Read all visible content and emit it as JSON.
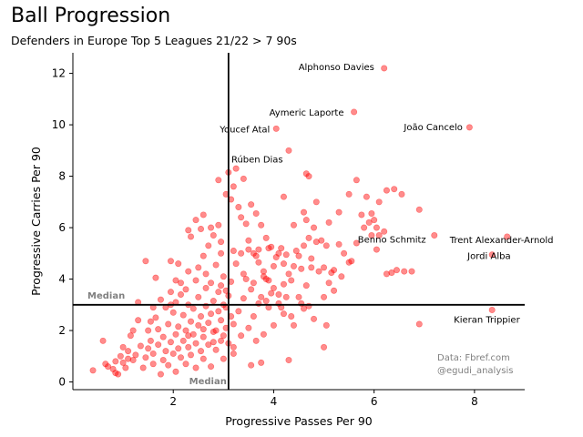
{
  "title": "Ball Progression",
  "subtitle": "Defenders in Europe Top 5 Leagues 21/22 > 7 90s",
  "credit": {
    "line1": "Data: Fbref.com",
    "line2": "@egudi_analysis"
  },
  "chart_data": {
    "type": "scatter",
    "xlabel": "Progressive Passes Per 90",
    "ylabel": "Progressive Carries Per 90",
    "xlim": [
      0.0,
      9.0
    ],
    "ylim": [
      -0.3,
      12.8
    ],
    "xticks": [
      2,
      4,
      6,
      8
    ],
    "yticks": [
      0,
      2,
      4,
      6,
      8,
      10,
      12
    ],
    "marker_color": "#ff0000",
    "marker_alpha": 0.45,
    "median": {
      "x": 3.1,
      "y": 3.0,
      "label": "Median"
    },
    "grid": false,
    "labeled_points": [
      {
        "name": "Alphonso Davies",
        "x": 6.2,
        "y": 12.2
      },
      {
        "name": "Aymeric Laporte",
        "x": 5.6,
        "y": 10.5
      },
      {
        "name": "João Cancelo",
        "x": 7.9,
        "y": 9.9
      },
      {
        "name": "Youcef Atal",
        "x": 4.05,
        "y": 9.85
      },
      {
        "name": "Rúben Dias",
        "x": 4.3,
        "y": 9.0
      },
      {
        "name": "Benno Schmitz",
        "x": 7.2,
        "y": 5.7
      },
      {
        "name": "Trent Alexander-Arnold",
        "x": 8.65,
        "y": 5.65
      },
      {
        "name": "Jordi Alba",
        "x": 8.35,
        "y": 4.95
      },
      {
        "name": "Kieran Trippier",
        "x": 8.35,
        "y": 2.8
      }
    ],
    "points": [
      [
        0.4,
        0.45
      ],
      [
        0.65,
        0.7
      ],
      [
        0.7,
        0.6
      ],
      [
        0.8,
        0.5
      ],
      [
        0.85,
        0.35
      ],
      [
        0.9,
        0.3
      ],
      [
        0.6,
        1.6
      ],
      [
        0.85,
        0.8
      ],
      [
        0.95,
        1.0
      ],
      [
        1.0,
        0.75
      ],
      [
        1.05,
        0.55
      ],
      [
        1.1,
        0.9
      ],
      [
        1.0,
        1.35
      ],
      [
        1.1,
        1.2
      ],
      [
        1.15,
        1.8
      ],
      [
        1.2,
        0.85
      ],
      [
        1.25,
        1.05
      ],
      [
        1.3,
        2.4
      ],
      [
        1.35,
        1.4
      ],
      [
        1.4,
        0.55
      ],
      [
        1.45,
        0.95
      ],
      [
        1.5,
        1.3
      ],
      [
        1.5,
        2.0
      ],
      [
        1.55,
        1.6
      ],
      [
        1.6,
        0.7
      ],
      [
        1.6,
        1.1
      ],
      [
        1.65,
        2.5
      ],
      [
        1.7,
        2.05
      ],
      [
        1.7,
        1.45
      ],
      [
        1.75,
        0.3
      ],
      [
        1.8,
        0.85
      ],
      [
        1.8,
        1.75
      ],
      [
        1.85,
        1.2
      ],
      [
        1.9,
        2.25
      ],
      [
        1.9,
        0.65
      ],
      [
        1.95,
        1.55
      ],
      [
        1.95,
        3.0
      ],
      [
        2.0,
        1.1
      ],
      [
        2.0,
        2.7
      ],
      [
        2.05,
        1.85
      ],
      [
        2.05,
        0.4
      ],
      [
        2.1,
        1.3
      ],
      [
        2.1,
        2.15
      ],
      [
        2.15,
        0.95
      ],
      [
        2.15,
        3.4
      ],
      [
        2.2,
        1.6
      ],
      [
        2.2,
        2.6
      ],
      [
        2.25,
        0.7
      ],
      [
        2.25,
        2.0
      ],
      [
        2.3,
        1.35
      ],
      [
        2.3,
        3.0
      ],
      [
        2.35,
        2.35
      ],
      [
        2.35,
        1.05
      ],
      [
        2.4,
        1.85
      ],
      [
        2.4,
        2.85
      ],
      [
        2.45,
        0.55
      ],
      [
        2.45,
        1.5
      ],
      [
        2.5,
        2.2
      ],
      [
        2.5,
        3.3
      ],
      [
        2.55,
        1.2
      ],
      [
        2.55,
        2.55
      ],
      [
        2.6,
        0.9
      ],
      [
        2.6,
        1.75
      ],
      [
        2.65,
        2.95
      ],
      [
        2.65,
        3.65
      ],
      [
        2.7,
        1.45
      ],
      [
        2.7,
        2.3
      ],
      [
        2.75,
        0.6
      ],
      [
        2.75,
        2.65
      ],
      [
        2.8,
        1.95
      ],
      [
        2.8,
        3.15
      ],
      [
        2.85,
        1.25
      ],
      [
        2.85,
        2.0
      ],
      [
        2.9,
        2.75
      ],
      [
        2.9,
        3.5
      ],
      [
        2.95,
        1.6
      ],
      [
        2.95,
        2.4
      ],
      [
        3.0,
        0.9
      ],
      [
        3.0,
        3.0
      ],
      [
        3.05,
        2.1
      ],
      [
        3.05,
        2.9
      ],
      [
        3.1,
        1.5
      ],
      [
        3.1,
        3.35
      ],
      [
        3.15,
        2.55
      ],
      [
        3.2,
        1.1
      ],
      [
        3.2,
        2.25
      ],
      [
        3.3,
        2.75
      ],
      [
        3.35,
        1.8
      ],
      [
        3.4,
        3.25
      ],
      [
        3.5,
        2.1
      ],
      [
        3.55,
        0.65
      ],
      [
        3.6,
        2.55
      ],
      [
        3.65,
        1.6
      ],
      [
        3.7,
        3.05
      ],
      [
        3.8,
        1.85
      ],
      [
        3.9,
        2.9
      ],
      [
        4.0,
        2.2
      ],
      [
        4.1,
        3.05
      ],
      [
        4.2,
        2.65
      ],
      [
        4.4,
        2.2
      ],
      [
        4.6,
        2.85
      ],
      [
        4.8,
        2.45
      ],
      [
        5.05,
        2.2
      ],
      [
        5.0,
        1.35
      ],
      [
        4.3,
        0.85
      ],
      [
        3.75,
        0.75
      ],
      [
        6.9,
        2.25
      ],
      [
        1.95,
        4.7
      ],
      [
        2.3,
        4.3
      ],
      [
        2.5,
        4.45
      ],
      [
        2.6,
        4.9
      ],
      [
        2.7,
        5.3
      ],
      [
        2.8,
        5.7
      ],
      [
        2.9,
        6.1
      ],
      [
        2.35,
        5.65
      ],
      [
        2.45,
        6.3
      ],
      [
        2.55,
        5.95
      ],
      [
        2.6,
        6.5
      ],
      [
        2.75,
        6.0
      ],
      [
        2.95,
        5.45
      ],
      [
        3.05,
        7.3
      ],
      [
        3.15,
        7.1
      ],
      [
        3.2,
        7.6
      ],
      [
        3.3,
        6.8
      ],
      [
        3.35,
        6.4
      ],
      [
        3.45,
        6.15
      ],
      [
        3.55,
        6.9
      ],
      [
        3.65,
        6.55
      ],
      [
        3.75,
        6.1
      ],
      [
        3.85,
        5.6
      ],
      [
        3.95,
        5.25
      ],
      [
        4.05,
        4.85
      ],
      [
        3.5,
        5.5
      ],
      [
        3.6,
        5.0
      ],
      [
        3.7,
        4.65
      ],
      [
        3.8,
        4.3
      ],
      [
        3.9,
        3.95
      ],
      [
        4.0,
        3.65
      ],
      [
        4.1,
        3.4
      ],
      [
        4.2,
        3.8
      ],
      [
        4.3,
        4.2
      ],
      [
        4.4,
        4.5
      ],
      [
        4.5,
        4.9
      ],
      [
        4.6,
        5.3
      ],
      [
        4.7,
        5.6
      ],
      [
        4.8,
        6.0
      ],
      [
        4.2,
        7.2
      ],
      [
        4.4,
        6.1
      ],
      [
        4.6,
        6.6
      ],
      [
        4.85,
        7.0
      ],
      [
        5.0,
        4.45
      ],
      [
        5.1,
        3.85
      ],
      [
        5.2,
        3.55
      ],
      [
        5.35,
        4.1
      ],
      [
        5.5,
        4.65
      ],
      [
        5.65,
        5.4
      ],
      [
        5.8,
        6.0
      ],
      [
        5.95,
        6.55
      ],
      [
        6.1,
        7.0
      ],
      [
        6.25,
        7.45
      ],
      [
        5.1,
        6.2
      ],
      [
        5.3,
        6.6
      ],
      [
        5.5,
        7.3
      ],
      [
        5.65,
        7.85
      ],
      [
        5.75,
        6.5
      ],
      [
        5.85,
        7.2
      ],
      [
        5.95,
        5.7
      ],
      [
        6.05,
        5.15
      ],
      [
        6.25,
        4.2
      ],
      [
        6.45,
        4.35
      ],
      [
        6.6,
        4.3
      ],
      [
        6.75,
        4.3
      ],
      [
        6.9,
        6.7
      ],
      [
        6.55,
        7.3
      ],
      [
        6.4,
        7.5
      ],
      [
        6.1,
        5.7
      ],
      [
        6.0,
        6.3
      ],
      [
        3.25,
        8.3
      ],
      [
        3.1,
        8.15
      ],
      [
        2.9,
        7.85
      ],
      [
        3.4,
        7.9
      ],
      [
        4.65,
        8.1
      ],
      [
        4.7,
        8.0
      ],
      [
        4.9,
        4.3
      ],
      [
        5.2,
        4.35
      ],
      [
        5.4,
        5.0
      ],
      [
        3.0,
        4.1
      ],
      [
        2.85,
        4.55
      ],
      [
        3.15,
        3.9
      ],
      [
        3.25,
        4.6
      ],
      [
        3.4,
        4.2
      ],
      [
        3.55,
        3.6
      ],
      [
        3.65,
        4.9
      ],
      [
        3.75,
        3.3
      ],
      [
        3.85,
        4.0
      ],
      [
        4.0,
        4.5
      ],
      [
        4.15,
        5.2
      ],
      [
        4.25,
        4.95
      ],
      [
        4.35,
        3.95
      ],
      [
        4.5,
        3.3
      ],
      [
        4.55,
        4.4
      ],
      [
        4.65,
        3.75
      ],
      [
        4.75,
        4.8
      ],
      [
        4.95,
        5.5
      ],
      [
        5.05,
        5.3
      ],
      [
        2.95,
        3.75
      ],
      [
        3.05,
        3.55
      ],
      [
        2.75,
        3.85
      ],
      [
        2.65,
        4.2
      ],
      [
        2.45,
        3.95
      ],
      [
        2.25,
        3.6
      ],
      [
        2.15,
        3.85
      ],
      [
        2.05,
        3.1
      ],
      [
        1.95,
        3.5
      ],
      [
        1.85,
        2.9
      ],
      [
        1.45,
        4.7
      ],
      [
        1.65,
        4.05
      ],
      [
        2.1,
        4.6
      ],
      [
        2.05,
        3.95
      ],
      [
        2.3,
        5.9
      ],
      [
        2.95,
        5.0
      ],
      [
        3.2,
        5.1
      ],
      [
        3.45,
        4.0
      ],
      [
        3.6,
        3.85
      ],
      [
        3.8,
        4.1
      ],
      [
        3.9,
        5.2
      ],
      [
        4.1,
        5.0
      ],
      [
        4.2,
        4.6
      ],
      [
        4.45,
        5.1
      ],
      [
        4.65,
        6.3
      ],
      [
        4.75,
        4.45
      ],
      [
        4.85,
        5.45
      ],
      [
        5.0,
        3.3
      ],
      [
        5.15,
        4.25
      ],
      [
        5.3,
        5.35
      ],
      [
        5.55,
        4.7
      ],
      [
        5.9,
        6.2
      ],
      [
        6.05,
        6.0
      ],
      [
        6.2,
        5.85
      ],
      [
        6.35,
        4.25
      ],
      [
        3.35,
        5.0
      ],
      [
        3.5,
        5.15
      ],
      [
        3.7,
        5.15
      ],
      [
        3.85,
        3.15
      ],
      [
        3.95,
        3.45
      ],
      [
        4.15,
        2.9
      ],
      [
        4.25,
        3.3
      ],
      [
        4.35,
        2.55
      ],
      [
        4.55,
        3.05
      ],
      [
        4.7,
        2.95
      ],
      [
        1.3,
        3.1
      ],
      [
        1.6,
        2.9
      ],
      [
        1.75,
        3.2
      ],
      [
        1.55,
        2.35
      ],
      [
        1.2,
        2.0
      ],
      [
        2.3,
        1.8
      ],
      [
        2.6,
        2.05
      ],
      [
        2.8,
        1.55
      ],
      [
        3.0,
        1.8
      ],
      [
        3.2,
        1.35
      ]
    ]
  }
}
